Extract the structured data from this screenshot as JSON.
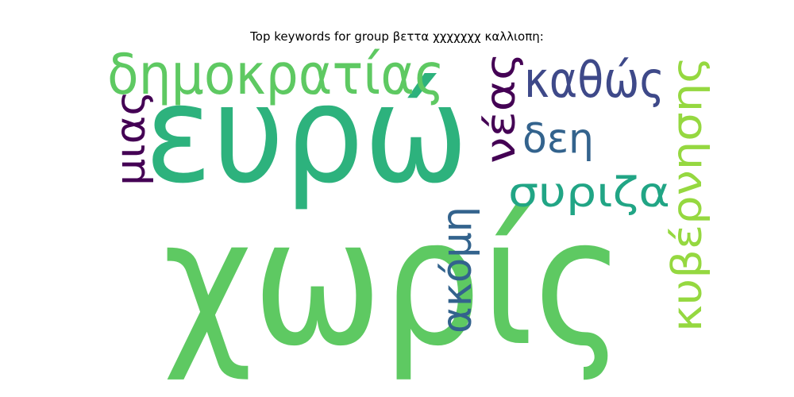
{
  "title": "Top keywords for group βεττα χχχχχχχ καλλιοπη:",
  "words": [
    {
      "text": "χωρίς",
      "color": "#5ec962"
    },
    {
      "text": "ευρώ",
      "color": "#2db27d"
    },
    {
      "text": "δημοκρατίας",
      "color": "#5ec962"
    },
    {
      "text": "καθώς",
      "color": "#3e4989"
    },
    {
      "text": "νέας",
      "color": "#440154"
    },
    {
      "text": "μιας",
      "color": "#440154"
    },
    {
      "text": "δεη",
      "color": "#33638d"
    },
    {
      "text": "συριζα",
      "color": "#21a585"
    },
    {
      "text": "ακόμη",
      "color": "#33638d"
    },
    {
      "text": "κυβέρνησης",
      "color": "#95d840"
    }
  ]
}
